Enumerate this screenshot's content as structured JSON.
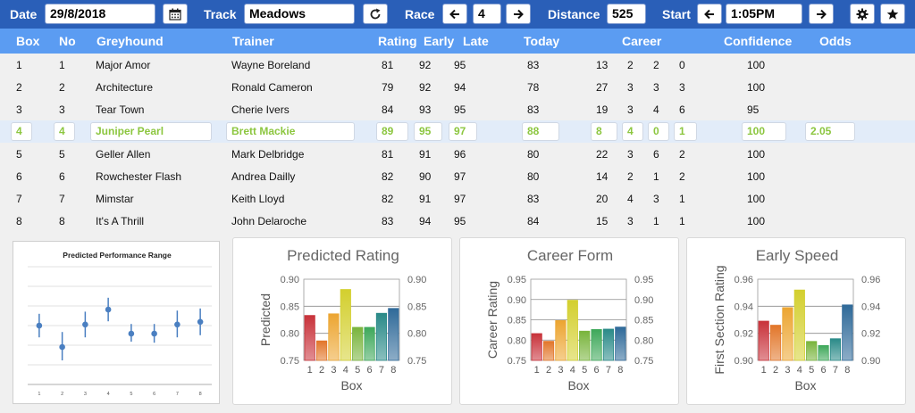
{
  "toolbar": {
    "date_label": "Date",
    "date_value": "29/8/2018",
    "track_label": "Track",
    "track_value": "Meadows",
    "race_label": "Race",
    "race_value": "4",
    "distance_label": "Distance",
    "distance_value": "525",
    "start_label": "Start",
    "start_value": "1:05PM",
    "icons": {
      "calendar": "calendar-icon",
      "refresh": "refresh-icon",
      "prev": "arrow-left-icon",
      "next": "arrow-right-icon",
      "settings": "gear-icon",
      "favorite": "star-icon"
    }
  },
  "table": {
    "headers": {
      "box": "Box",
      "no": "No",
      "greyhound": "Greyhound",
      "trainer": "Trainer",
      "rating": "Rating",
      "early": "Early",
      "late": "Late",
      "today": "Today",
      "career": "Career",
      "confidence": "Confidence",
      "odds": "Odds"
    },
    "selected_row": 3,
    "rows": [
      {
        "box": "1",
        "no": "1",
        "greyhound": "Major Amor",
        "trainer": "Wayne Boreland",
        "rating": "81",
        "early": "92",
        "late": "95",
        "today": "83",
        "c1": "13",
        "c2": "2",
        "c3": "2",
        "c4": "0",
        "confidence": "100",
        "odds": ""
      },
      {
        "box": "2",
        "no": "2",
        "greyhound": "Architecture",
        "trainer": "Ronald Cameron",
        "rating": "79",
        "early": "92",
        "late": "94",
        "today": "78",
        "c1": "27",
        "c2": "3",
        "c3": "3",
        "c4": "3",
        "confidence": "100",
        "odds": ""
      },
      {
        "box": "3",
        "no": "3",
        "greyhound": "Tear Town",
        "trainer": "Cherie Ivers",
        "rating": "84",
        "early": "93",
        "late": "95",
        "today": "83",
        "c1": "19",
        "c2": "3",
        "c3": "4",
        "c4": "6",
        "confidence": "95",
        "odds": ""
      },
      {
        "box": "4",
        "no": "4",
        "greyhound": "Juniper Pearl",
        "trainer": "Brett Mackie",
        "rating": "89",
        "early": "95",
        "late": "97",
        "today": "88",
        "c1": "8",
        "c2": "4",
        "c3": "0",
        "c4": "1",
        "confidence": "100",
        "odds": "2.05"
      },
      {
        "box": "5",
        "no": "5",
        "greyhound": "Geller Allen",
        "trainer": "Mark Delbridge",
        "rating": "81",
        "early": "91",
        "late": "96",
        "today": "80",
        "c1": "22",
        "c2": "3",
        "c3": "6",
        "c4": "2",
        "confidence": "100",
        "odds": ""
      },
      {
        "box": "6",
        "no": "6",
        "greyhound": "Rowchester Flash",
        "trainer": "Andrea Dailly",
        "rating": "82",
        "early": "90",
        "late": "97",
        "today": "80",
        "c1": "14",
        "c2": "2",
        "c3": "1",
        "c4": "2",
        "confidence": "100",
        "odds": ""
      },
      {
        "box": "7",
        "no": "7",
        "greyhound": "Mimstar",
        "trainer": "Keith Lloyd",
        "rating": "82",
        "early": "91",
        "late": "97",
        "today": "83",
        "c1": "20",
        "c2": "4",
        "c3": "3",
        "c4": "1",
        "confidence": "100",
        "odds": ""
      },
      {
        "box": "8",
        "no": "8",
        "greyhound": "It's A Thrill",
        "trainer": "John Delaroche",
        "rating": "83",
        "early": "94",
        "late": "95",
        "today": "84",
        "c1": "15",
        "c2": "3",
        "c3": "1",
        "c4": "1",
        "confidence": "100",
        "odds": ""
      }
    ]
  },
  "chart_data": [
    {
      "type": "scatter",
      "title": "Predicted Performance Range",
      "x": [
        1,
        2,
        3,
        4,
        5,
        6,
        7,
        8
      ],
      "y": [
        0.84,
        0.8,
        0.842,
        0.87,
        0.825,
        0.825,
        0.842,
        0.847
      ],
      "y_low": [
        0.818,
        0.775,
        0.818,
        0.848,
        0.81,
        0.808,
        0.818,
        0.822
      ],
      "y_high": [
        0.862,
        0.828,
        0.866,
        0.892,
        0.843,
        0.843,
        0.868,
        0.872
      ],
      "ylim": [
        0.73,
        0.95
      ],
      "grid": true,
      "color": "#4a7fc1"
    },
    {
      "type": "bar",
      "title": "Predicted Rating",
      "xlabel": "Box",
      "ylabel": "Predicted",
      "categories": [
        "1",
        "2",
        "3",
        "4",
        "5",
        "6",
        "7",
        "8"
      ],
      "values": [
        0.833,
        0.786,
        0.836,
        0.881,
        0.811,
        0.811,
        0.837,
        0.846
      ],
      "ylim": [
        0.75,
        0.9
      ],
      "yticks": [
        "0.90",
        "0.85",
        "0.80",
        "0.75"
      ],
      "grid": true
    },
    {
      "type": "bar",
      "title": "Career Form",
      "xlabel": "Box",
      "ylabel": "Career Rating",
      "categories": [
        "1",
        "2",
        "3",
        "4",
        "5",
        "6",
        "7",
        "8"
      ],
      "values": [
        0.816,
        0.797,
        0.848,
        0.898,
        0.822,
        0.826,
        0.827,
        0.832
      ],
      "ylim": [
        0.75,
        0.95
      ],
      "yticks": [
        "0.95",
        "0.90",
        "0.85",
        "0.80",
        "0.75"
      ],
      "grid": true
    },
    {
      "type": "bar",
      "title": "Early Speed",
      "xlabel": "Box",
      "ylabel": "First Section Rating",
      "categories": [
        "1",
        "2",
        "3",
        "4",
        "5",
        "6",
        "7",
        "8"
      ],
      "values": [
        0.929,
        0.926,
        0.939,
        0.952,
        0.914,
        0.911,
        0.916,
        0.941
      ],
      "ylim": [
        0.9,
        0.96
      ],
      "yticks": [
        "0.96",
        "0.94",
        "0.92",
        "0.90"
      ],
      "grid": true
    }
  ],
  "bar_colors": [
    "#c8323a",
    "#e2762a",
    "#eca531",
    "#d3cf2e",
    "#79b43c",
    "#3ea85a",
    "#2a8a88",
    "#2f6a99"
  ]
}
